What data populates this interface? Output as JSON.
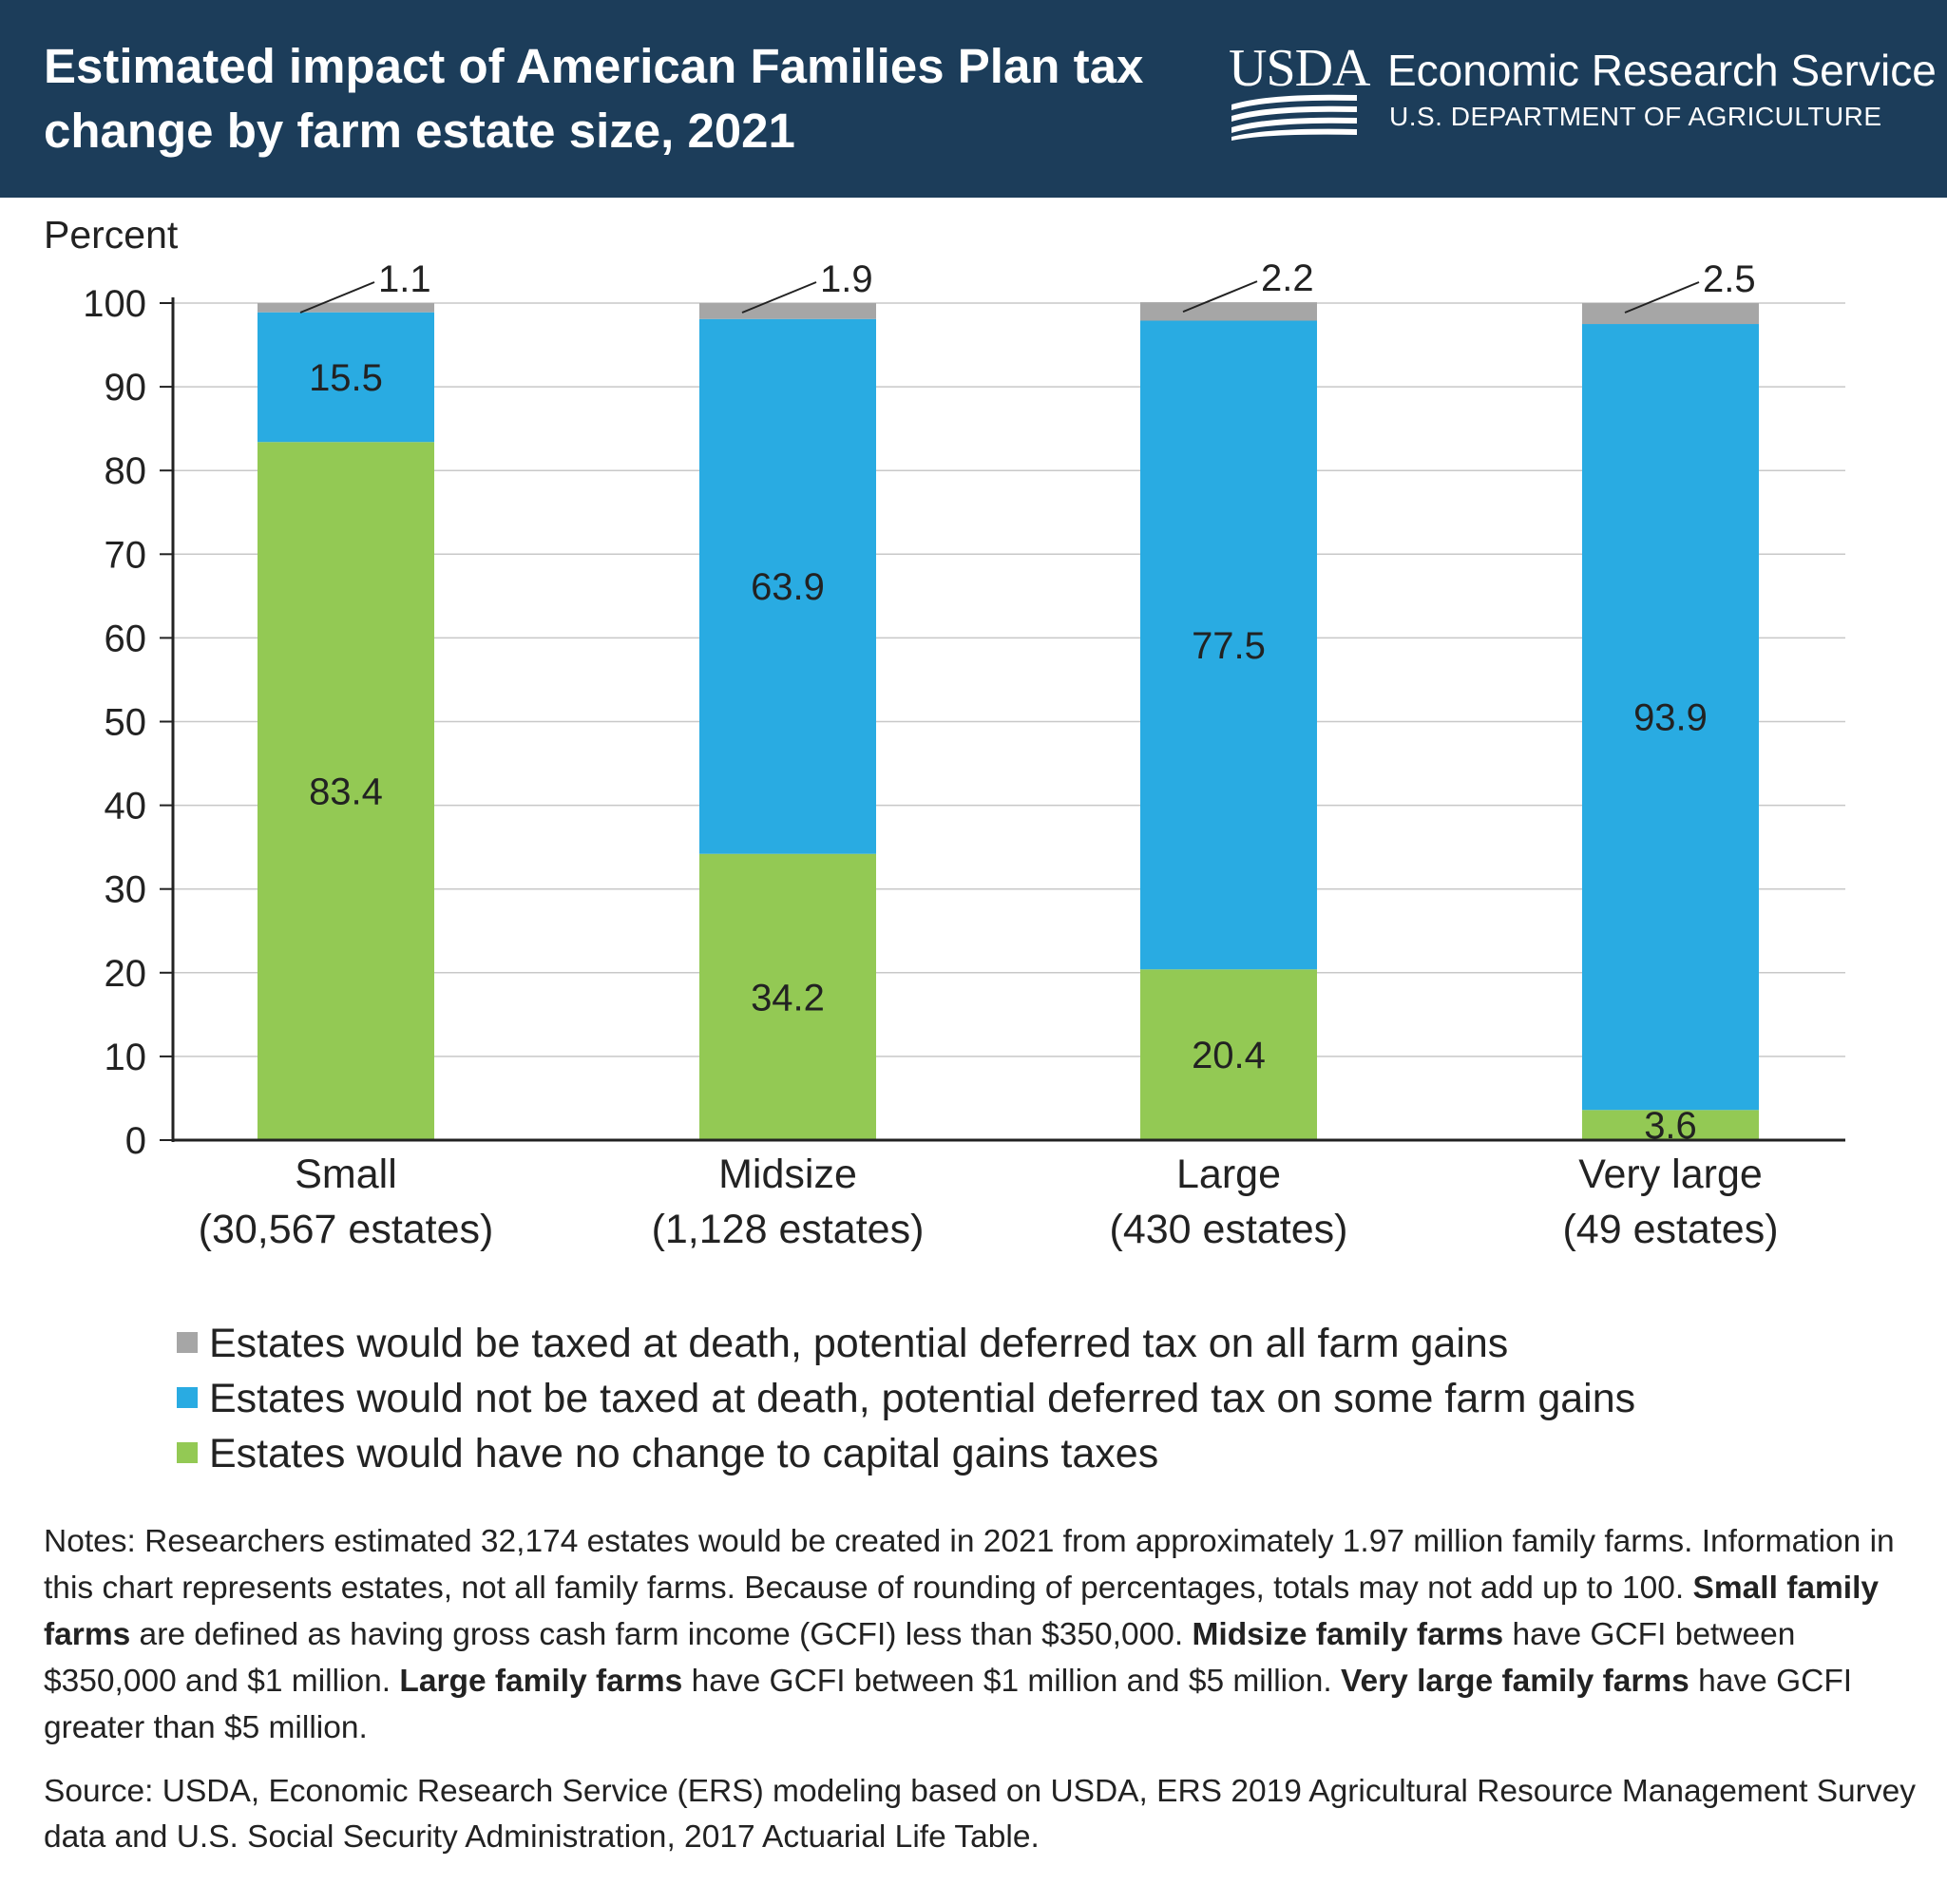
{
  "header": {
    "title": "Estimated impact of American Families Plan tax change by farm estate size, 2021",
    "logo_text": "USDA",
    "agency_name": "Economic Research Service",
    "department": "U.S. DEPARTMENT OF AGRICULTURE",
    "colors": {
      "header_bg": "#1c3d5a",
      "text": "#ffffff"
    }
  },
  "chart_data": {
    "type": "bar",
    "stacked": true,
    "title": "Estimated impact of American Families Plan tax change by farm estate size, 2021",
    "ylabel": "Percent",
    "xlabel": "",
    "ylim": [
      0,
      100
    ],
    "yticks": [
      0,
      10,
      20,
      30,
      40,
      50,
      60,
      70,
      80,
      90,
      100
    ],
    "grid": true,
    "legend_position": "bottom",
    "categories": [
      {
        "name": "Small",
        "count": "(30,567 estates)"
      },
      {
        "name": "Midsize",
        "count": "(1,128 estates)"
      },
      {
        "name": "Large",
        "count": "(430 estates)"
      },
      {
        "name": "Very large",
        "count": "(49 estates)"
      }
    ],
    "series": [
      {
        "name": "Estates would have no change to capital gains taxes",
        "color": "#93c954",
        "values": [
          83.4,
          34.2,
          20.4,
          3.6
        ]
      },
      {
        "name": "Estates would not be taxed at death, potential deferred tax on some farm gains",
        "color": "#29abe2",
        "values": [
          15.5,
          63.9,
          77.5,
          93.9
        ]
      },
      {
        "name": "Estates would be taxed at death, potential deferred tax on all farm gains",
        "color": "#a6a6a6",
        "values": [
          1.1,
          1.9,
          2.2,
          2.5
        ]
      }
    ],
    "legend_order": [
      2,
      1,
      0
    ]
  },
  "notes": {
    "prefix": "Notes: Researchers estimated 32,174 estates would be created in 2021 from approximately 1.97 million family farms. Information in this chart represents estates, not all family farms. Because of rounding of percentages, totals may not add up to 100. ",
    "small_label": "Small family farms",
    "small_text": " are defined as having gross cash farm income (GCFI) less than $350,000. ",
    "midsize_label": "Midsize family farms",
    "midsize_text": " have GCFI between $350,000 and $1 million. ",
    "large_label": "Large family farms",
    "large_text": " have GCFI between $1 million and $5 million. ",
    "verylarge_label": "Very large family farms",
    "verylarge_text": " have GCFI greater than $5 million."
  },
  "source": "Source: USDA, Economic Research Service (ERS) modeling based on USDA, ERS 2019 Agricultural Resource Management Survey data and U.S. Social Security Administration, 2017  Actuarial Life Table."
}
